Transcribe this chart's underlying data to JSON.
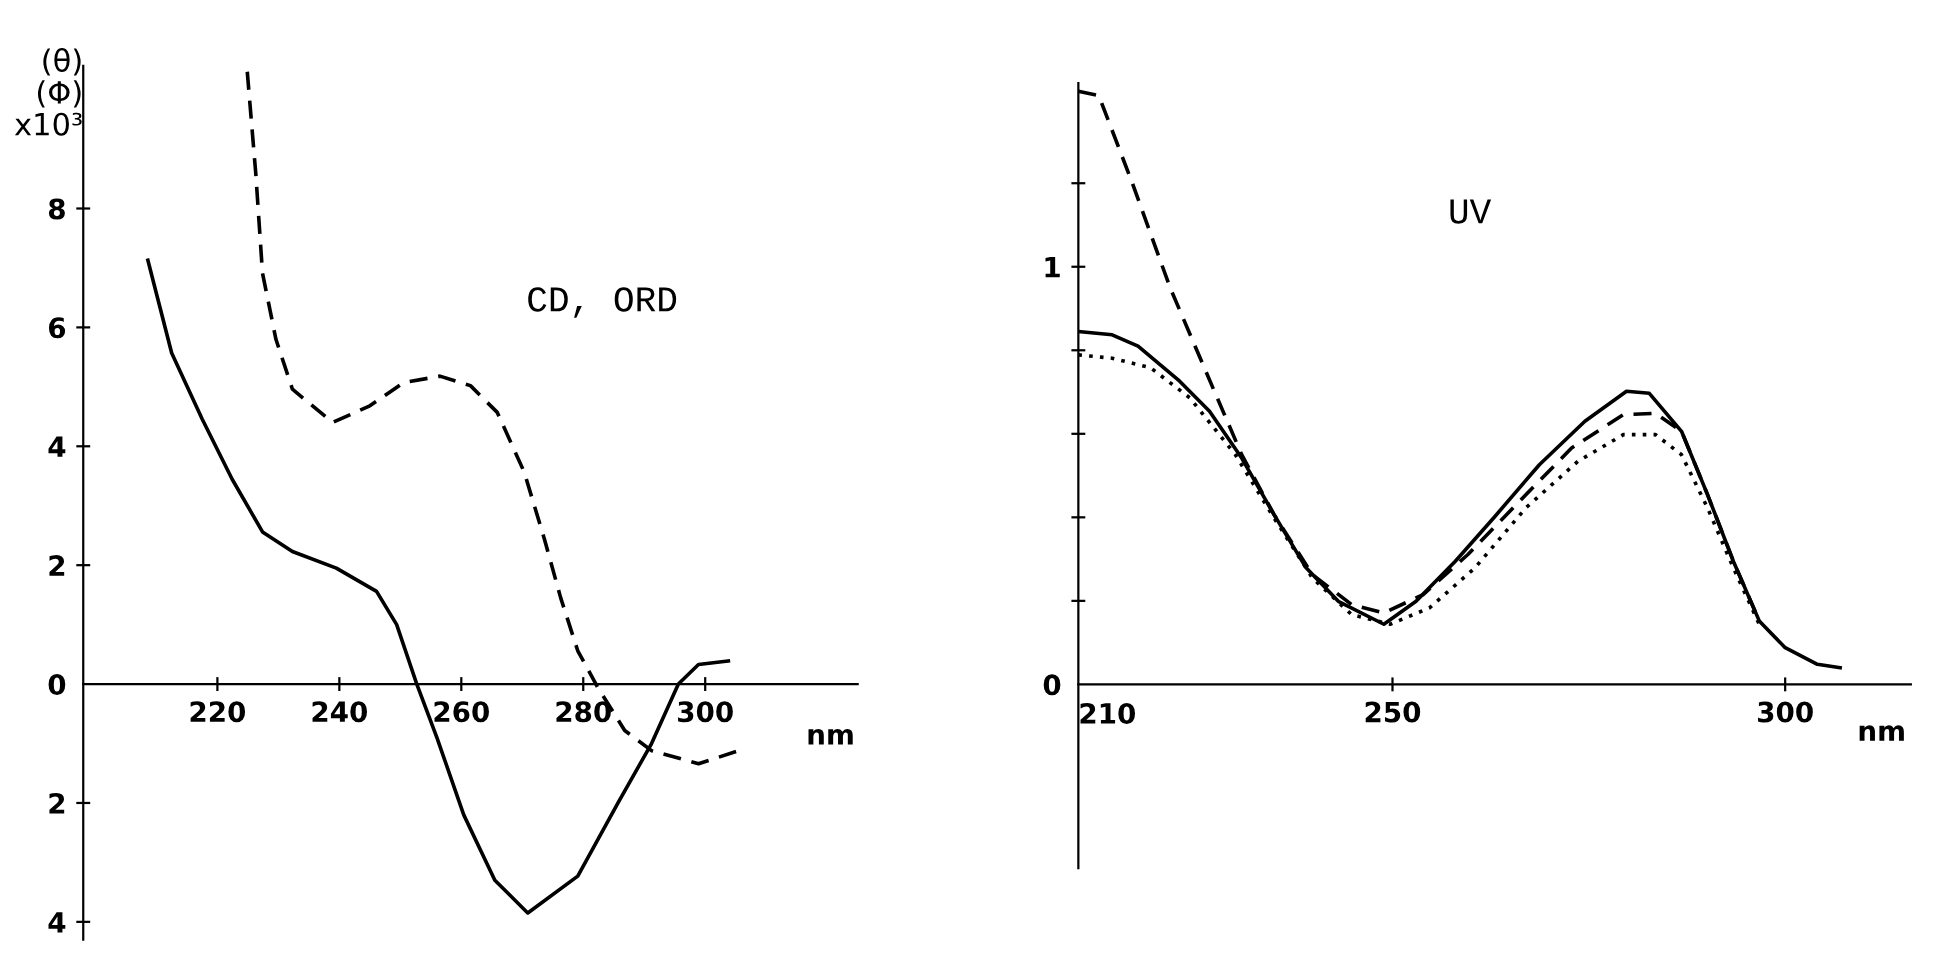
{
  "chart_data": [
    {
      "type": "line",
      "title": "CD, ORD",
      "xlabel": "nm",
      "ylabel": "(θ)\n(Φ)\nx10³",
      "xlim": [
        198,
        325
      ],
      "ylim": [
        -4.3,
        10.4
      ],
      "xticks": [
        220,
        240,
        260,
        280,
        300
      ],
      "yticks": [
        {
          "value": -4,
          "label": "4"
        },
        {
          "value": -2,
          "label": "2"
        },
        0,
        2,
        4,
        6,
        8
      ],
      "grid": false,
      "legend": false,
      "series": [
        {
          "color": "#000000",
          "line_style": "solid",
          "x": [
            208.6,
            212.5,
            217.5,
            222.4,
            227.4,
            232.3,
            239.5,
            246.1,
            249.4,
            252.7,
            256,
            260.4,
            265.5,
            270.9,
            279.1,
            285.7,
            291.2,
            295.6,
            298.9,
            303.8
          ],
          "values": [
            7.13,
            5.57,
            4.46,
            3.45,
            2.56,
            2.23,
            1.95,
            1.56,
            1.0,
            0,
            -0.9,
            -2.2,
            -3.3,
            -3.85,
            -3.23,
            -2.0,
            -1.0,
            0,
            0.33,
            0.39
          ]
        },
        {
          "color": "#000000",
          "line_style": "dashed",
          "x": [
            224.9,
            226.3,
            227.4,
            229.6,
            232.3,
            238.9,
            245,
            250.5,
            256.5,
            261.5,
            265.9,
            270.3,
            273.6,
            276.3,
            279.1,
            282.4,
            286.8,
            291.2,
            298.9,
            305.5
          ],
          "values": [
            10.3,
            8.58,
            6.91,
            5.8,
            4.96,
            4.4,
            4.68,
            5.07,
            5.18,
            5.02,
            4.57,
            3.57,
            2.45,
            1.45,
            0.56,
            -0.06,
            -0.78,
            -1.12,
            -1.34,
            -1.12
          ]
        }
      ]
    },
    {
      "type": "line",
      "title": "UV",
      "xlabel": "nm",
      "xlim": [
        210,
        316
      ],
      "ylim": [
        -0.44,
        1.44
      ],
      "xticks": [
        210,
        250,
        300
      ],
      "yticks": [
        0,
        {
          "value": 0.2,
          "label": null
        },
        {
          "value": 0.4,
          "label": null
        },
        {
          "value": 0.6,
          "label": null
        },
        {
          "value": 0.8,
          "label": null
        },
        1,
        {
          "value": 1.2,
          "label": null
        }
      ],
      "grid": false,
      "legend": false,
      "series": [
        {
          "color": "#000000",
          "line_style": "solid",
          "x": [
            210,
            214.3,
            217.6,
            222.9,
            226.7,
            230.8,
            234.9,
            239,
            243.1,
            248.9,
            253,
            258,
            262.9,
            268.7,
            274.5,
            279.8,
            282.7,
            286.8,
            290.1,
            293.4,
            296.7,
            300,
            304.1,
            307
          ],
          "values": [
            0.845,
            0.837,
            0.81,
            0.726,
            0.654,
            0.542,
            0.407,
            0.279,
            0.199,
            0.144,
            0.199,
            0.295,
            0.399,
            0.526,
            0.63,
            0.702,
            0.697,
            0.606,
            0.455,
            0.295,
            0.152,
            0.088,
            0.048,
            0.04
          ]
        },
        {
          "color": "#000000",
          "line_style": "dashed",
          "x": [
            210,
            212.6,
            216.8,
            221.7,
            227.5,
            230.8,
            234.9,
            239.8,
            244.8,
            248.9,
            253.9,
            259.6,
            266.2,
            272.8,
            279.4,
            283.5,
            286.8,
            290.1,
            293.4,
            296.7
          ],
          "values": [
            1.42,
            1.41,
            1.204,
            0.949,
            0.694,
            0.55,
            0.407,
            0.263,
            0.191,
            0.171,
            0.215,
            0.311,
            0.439,
            0.566,
            0.646,
            0.649,
            0.606,
            0.455,
            0.295,
            0.152
          ]
        },
        {
          "color": "#000000",
          "line_style": "dotted",
          "x": [
            210,
            214.3,
            219.2,
            224.2,
            230,
            234.9,
            239.8,
            244.8,
            249.7,
            254.7,
            260.5,
            267,
            273.6,
            279.4,
            283.5,
            286.8,
            290.1,
            293.4,
            296.7
          ],
          "values": [
            0.789,
            0.781,
            0.758,
            0.686,
            0.55,
            0.399,
            0.255,
            0.167,
            0.144,
            0.183,
            0.279,
            0.423,
            0.534,
            0.598,
            0.598,
            0.55,
            0.423,
            0.279,
            0.144
          ]
        }
      ]
    }
  ]
}
